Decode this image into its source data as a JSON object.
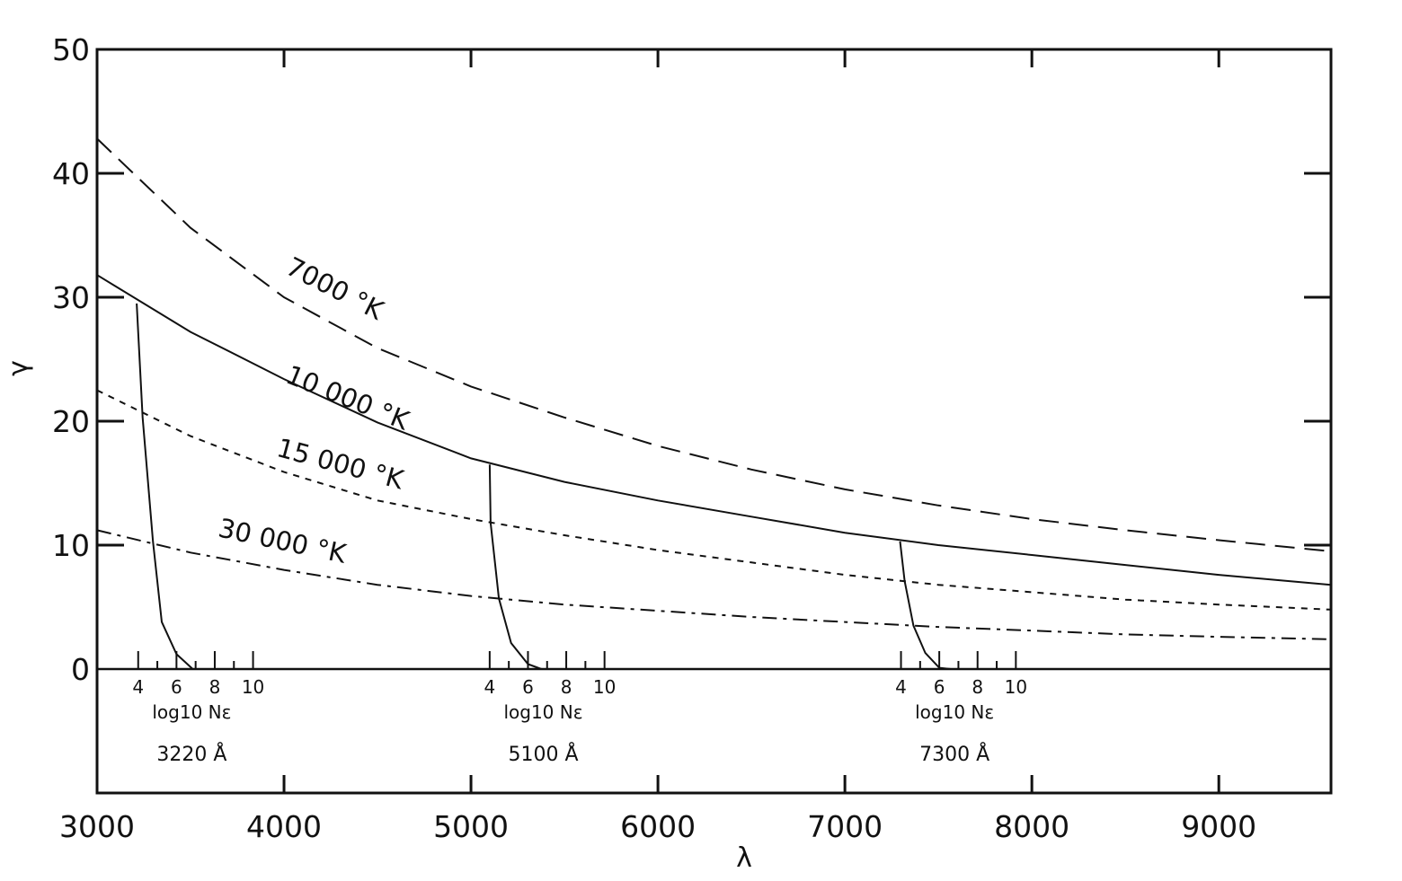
{
  "chart_data": {
    "type": "line",
    "title": "",
    "xlabel": "λ",
    "ylabel": "γ",
    "xlim": [
      3000,
      9600
    ],
    "ylim": [
      -10,
      50
    ],
    "grid": false,
    "x_ticks": [
      3000,
      4000,
      5000,
      6000,
      7000,
      8000,
      9000
    ],
    "x_tick_labels": [
      "3000",
      "4000",
      "5000",
      "6000",
      "7000",
      "8000",
      "9000"
    ],
    "y_ticks": [
      0,
      10,
      20,
      30,
      40,
      50
    ],
    "y_tick_labels": [
      "0",
      "10",
      "20",
      "30",
      "40",
      "50"
    ],
    "x": [
      3000,
      3500,
      4000,
      4500,
      5000,
      5500,
      6000,
      6500,
      7000,
      7500,
      8000,
      8500,
      9000,
      9600
    ],
    "series": [
      {
        "name": "7000 °K",
        "style": "long-dash",
        "values": [
          42.8,
          35.6,
          30.0,
          25.9,
          22.8,
          20.3,
          18.0,
          16.1,
          14.5,
          13.2,
          12.1,
          11.2,
          10.4,
          9.5
        ]
      },
      {
        "name": "10 000 °K",
        "style": "solid",
        "values": [
          31.8,
          27.2,
          23.4,
          19.9,
          17.0,
          15.1,
          13.6,
          12.3,
          11.0,
          10.0,
          9.2,
          8.4,
          7.6,
          6.8
        ]
      },
      {
        "name": "15 000 °K",
        "style": "short-dash",
        "values": [
          22.5,
          18.8,
          15.9,
          13.6,
          12.1,
          10.8,
          9.6,
          8.6,
          7.6,
          6.8,
          6.2,
          5.6,
          5.2,
          4.8
        ]
      },
      {
        "name": "30 000 °K",
        "style": "dash-dot",
        "values": [
          11.2,
          9.4,
          8.0,
          6.8,
          5.9,
          5.2,
          4.7,
          4.2,
          3.8,
          3.4,
          3.1,
          2.8,
          2.6,
          2.4
        ]
      }
    ],
    "density_insets": [
      {
        "wavelength": 3220,
        "label": "3220 Å",
        "scale_label": "log10 Nε",
        "scale_ticks": [
          "4",
          "6",
          "8",
          "10"
        ],
        "log_ne": [
          3.92,
          4.23,
          4.77,
          5.23,
          6.0,
          6.85
        ],
        "gamma": [
          29.5,
          20.3,
          10.3,
          3.8,
          1.2,
          0
        ]
      },
      {
        "wavelength": 5100,
        "label": "5100 Å",
        "scale_label": "log10 Nε",
        "scale_ticks": [
          "4",
          "6",
          "8",
          "10"
        ],
        "log_ne": [
          4.0,
          4.05,
          4.48,
          5.12,
          6.0,
          6.7
        ],
        "gamma": [
          16.5,
          11.8,
          5.7,
          2.1,
          0.4,
          0
        ]
      },
      {
        "wavelength": 7300,
        "label": "7300 Å",
        "scale_label": "log10 Nε",
        "scale_ticks": [
          "4",
          "6",
          "8",
          "10"
        ],
        "log_ne": [
          3.95,
          4.19,
          4.65,
          5.27,
          6.0,
          6.6
        ],
        "gamma": [
          10.3,
          7.1,
          3.5,
          1.3,
          0.1,
          0
        ]
      }
    ]
  }
}
